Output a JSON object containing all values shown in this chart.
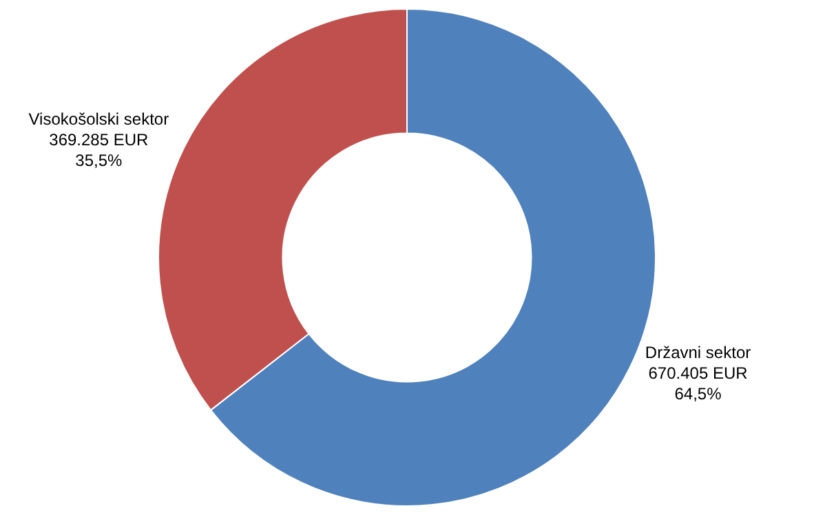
{
  "chart_data": {
    "type": "donut",
    "categories": [
      "Državni sektor",
      "Visokošolski sektor"
    ],
    "values": [
      670405,
      369285
    ],
    "colors": [
      "#4f81bd",
      "#c0504d"
    ],
    "value_labels": [
      "670.405 EUR\n64,5%",
      "369.285 EUR\n35,5%"
    ],
    "legend": false
  }
}
